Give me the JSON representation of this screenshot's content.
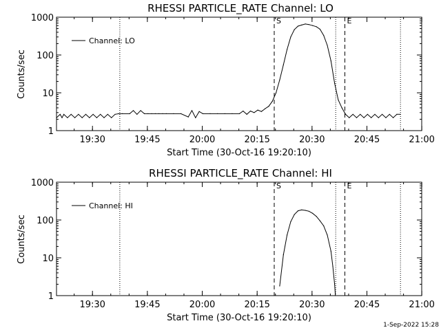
{
  "footer": {
    "timestamp": "1-Sep-2022 15:28"
  },
  "chart_data": [
    {
      "type": "line",
      "title": "RHESSI PARTICLE_RATE Channel: LO",
      "xlabel": "Start Time (30-Oct-16 19:20:10)",
      "ylabel": "Counts/sec",
      "x_unit": "minutes after 19:20:10",
      "xlim": [
        0,
        99.8
      ],
      "ylim": [
        1,
        1000
      ],
      "yscale": "log",
      "grid": false,
      "legend_position": "top-left",
      "x_ticks": [
        "19:30",
        "19:45",
        "20:00",
        "20:15",
        "20:30",
        "20:45",
        "21:00"
      ],
      "x_tick_values": [
        9.83,
        24.83,
        39.83,
        54.83,
        69.83,
        84.83,
        99.83
      ],
      "y_ticks": [
        "1",
        "10",
        "100",
        "1000"
      ],
      "y_tick_values": [
        1,
        10,
        100,
        1000
      ],
      "markers": [
        {
          "x": 17.3,
          "style": "dotted",
          "label": ""
        },
        {
          "x": 59.5,
          "style": "dashed",
          "label": "S"
        },
        {
          "x": 76.3,
          "style": "dotted",
          "label": ""
        },
        {
          "x": 78.8,
          "style": "dashed",
          "label": "E"
        },
        {
          "x": 94.0,
          "style": "dotted",
          "label": ""
        }
      ],
      "series": [
        {
          "name": "Channel: LO",
          "x": [
            0,
            1,
            1.5,
            2,
            3,
            4,
            5,
            6,
            7,
            8,
            9,
            10,
            11,
            12,
            13,
            14,
            15,
            16,
            17,
            18,
            20,
            21,
            22,
            23,
            24,
            25,
            26,
            27,
            28,
            29,
            30,
            32,
            34,
            36,
            37,
            38,
            39,
            40,
            42,
            44,
            46,
            48,
            50,
            51,
            52,
            53,
            54,
            55,
            56,
            57,
            58,
            59,
            60,
            61,
            62,
            63,
            64,
            65,
            66,
            67,
            68,
            69,
            70,
            71,
            72,
            73,
            74,
            75,
            76,
            77,
            78,
            79,
            80,
            81,
            82,
            83,
            84,
            85,
            86,
            87,
            88,
            89,
            90,
            91,
            92,
            93,
            94
          ],
          "values": [
            2.2,
            2.7,
            2.2,
            2.7,
            2.2,
            2.7,
            2.2,
            2.7,
            2.2,
            2.7,
            2.2,
            2.7,
            2.2,
            2.7,
            2.2,
            2.7,
            2.2,
            2.7,
            2.8,
            2.8,
            2.8,
            3.4,
            2.7,
            3.4,
            2.8,
            2.8,
            2.8,
            2.8,
            2.8,
            2.8,
            2.8,
            2.8,
            2.8,
            2.3,
            3.4,
            2.2,
            3.2,
            2.8,
            2.8,
            2.8,
            2.8,
            2.8,
            2.8,
            3.3,
            2.7,
            3.3,
            3.0,
            3.5,
            3.2,
            3.8,
            4.4,
            6.0,
            10,
            22,
            55,
            140,
            300,
            470,
            580,
            620,
            660,
            640,
            600,
            560,
            480,
            330,
            180,
            70,
            18,
            6.5,
            4.0,
            2.7,
            2.2,
            2.7,
            2.2,
            2.7,
            2.2,
            2.7,
            2.2,
            2.7,
            2.2,
            2.7,
            2.2,
            2.7,
            2.2,
            2.7,
            2.7
          ]
        }
      ]
    },
    {
      "type": "line",
      "title": "RHESSI PARTICLE_RATE Channel: HI",
      "xlabel": "Start Time (30-Oct-16 19:20:10)",
      "ylabel": "Counts/sec",
      "x_unit": "minutes after 19:20:10",
      "xlim": [
        0,
        99.8
      ],
      "ylim": [
        1,
        1000
      ],
      "yscale": "log",
      "grid": false,
      "legend_position": "top-left",
      "x_ticks": [
        "19:30",
        "19:45",
        "20:00",
        "20:15",
        "20:30",
        "20:45",
        "21:00"
      ],
      "x_tick_values": [
        9.83,
        24.83,
        39.83,
        54.83,
        69.83,
        84.83,
        99.83
      ],
      "y_ticks": [
        "1",
        "10",
        "100",
        "1000"
      ],
      "y_tick_values": [
        1,
        10,
        100,
        1000
      ],
      "markers": [
        {
          "x": 17.3,
          "style": "dotted",
          "label": ""
        },
        {
          "x": 59.5,
          "style": "dashed",
          "label": "S"
        },
        {
          "x": 76.3,
          "style": "dotted",
          "label": ""
        },
        {
          "x": 78.8,
          "style": "dashed",
          "label": "E"
        },
        {
          "x": 94.0,
          "style": "dotted",
          "label": ""
        }
      ],
      "series": [
        {
          "name": "Channel: HI",
          "x": [
            61,
            62,
            63,
            64,
            65,
            66,
            67,
            68,
            69,
            70,
            71,
            72,
            73,
            74,
            75,
            75.5,
            76,
            76.2
          ],
          "values": [
            1.8,
            12,
            40,
            90,
            140,
            175,
            185,
            180,
            170,
            150,
            125,
            95,
            70,
            40,
            15,
            6,
            2,
            1
          ]
        }
      ]
    }
  ]
}
